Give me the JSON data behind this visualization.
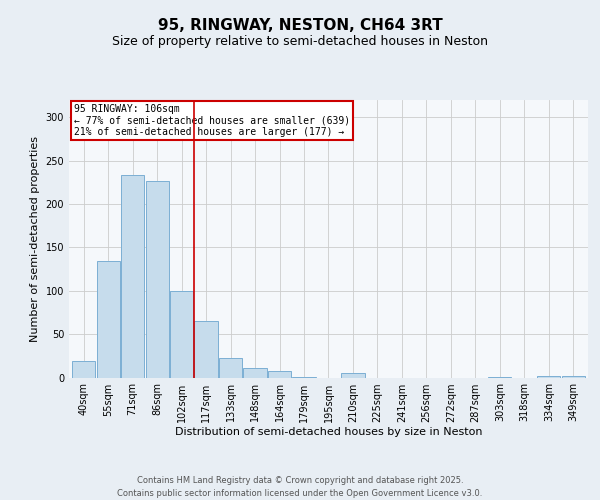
{
  "title": "95, RINGWAY, NESTON, CH64 3RT",
  "subtitle": "Size of property relative to semi-detached houses in Neston",
  "xlabel": "Distribution of semi-detached houses by size in Neston",
  "ylabel": "Number of semi-detached properties",
  "categories": [
    "40sqm",
    "55sqm",
    "71sqm",
    "86sqm",
    "102sqm",
    "117sqm",
    "133sqm",
    "148sqm",
    "164sqm",
    "179sqm",
    "195sqm",
    "210sqm",
    "225sqm",
    "241sqm",
    "256sqm",
    "272sqm",
    "287sqm",
    "303sqm",
    "318sqm",
    "334sqm",
    "349sqm"
  ],
  "values": [
    19,
    134,
    233,
    227,
    100,
    65,
    23,
    11,
    8,
    1,
    0,
    5,
    0,
    0,
    0,
    0,
    0,
    1,
    0,
    2,
    2
  ],
  "bar_color": "#c6dcec",
  "bar_edge_color": "#7bafd4",
  "property_line_x": 4.5,
  "property_label": "95 RINGWAY: 106sqm",
  "annotation_line1": "← 77% of semi-detached houses are smaller (639)",
  "annotation_line2": "21% of semi-detached houses are larger (177) →",
  "annotation_box_color": "#cc0000",
  "ylim": [
    0,
    320
  ],
  "yticks": [
    0,
    50,
    100,
    150,
    200,
    250,
    300
  ],
  "footer_line1": "Contains HM Land Registry data © Crown copyright and database right 2025.",
  "footer_line2": "Contains public sector information licensed under the Open Government Licence v3.0.",
  "background_color": "#e8eef4",
  "plot_bg_color": "#f5f8fb",
  "title_fontsize": 11,
  "subtitle_fontsize": 9,
  "label_fontsize": 8,
  "tick_fontsize": 7,
  "footer_fontsize": 6,
  "annot_fontsize": 7
}
